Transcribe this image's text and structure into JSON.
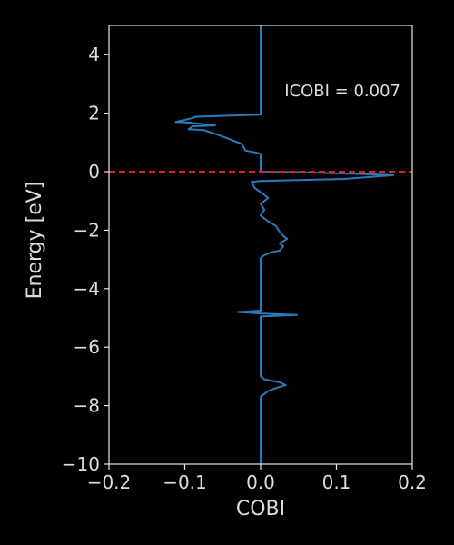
{
  "chart_data": {
    "type": "line",
    "title": "",
    "xlabel": "COBI",
    "ylabel": "Energy [eV]",
    "xlim": [
      -0.2,
      0.2
    ],
    "ylim": [
      -10,
      5
    ],
    "xticks": [
      -0.2,
      -0.1,
      0.0,
      0.1,
      0.2
    ],
    "xtick_labels": [
      "−0.2",
      "−0.1",
      "0.0",
      "0.1",
      "0.2"
    ],
    "yticks": [
      4,
      2,
      0,
      -2,
      -4,
      -6,
      -8,
      -10
    ],
    "ytick_labels": [
      "4",
      "2",
      "0",
      "−2",
      "−4",
      "−6",
      "−8",
      "−10"
    ],
    "annotation": "ICOBI = 0.007",
    "grid": false,
    "reference_line": {
      "y": 0,
      "style": "dashed",
      "color": "#e0201b"
    },
    "series": [
      {
        "color": "#2b7bba",
        "points": [
          [
            0.0,
            5.0
          ],
          [
            0.0,
            1.95
          ],
          [
            -0.085,
            1.88
          ],
          [
            -0.09,
            1.83
          ],
          [
            -0.112,
            1.7
          ],
          [
            -0.095,
            1.68
          ],
          [
            -0.06,
            1.58
          ],
          [
            -0.09,
            1.55
          ],
          [
            -0.095,
            1.45
          ],
          [
            -0.075,
            1.42
          ],
          [
            -0.058,
            1.28
          ],
          [
            -0.04,
            1.1
          ],
          [
            -0.025,
            0.95
          ],
          [
            -0.02,
            0.72
          ],
          [
            -0.005,
            0.65
          ],
          [
            0.0,
            0.6
          ],
          [
            0.0,
            0.0
          ],
          [
            0.05,
            -0.02
          ],
          [
            0.12,
            -0.07
          ],
          [
            0.175,
            -0.12
          ],
          [
            0.11,
            -0.25
          ],
          [
            0.0,
            -0.32
          ],
          [
            -0.012,
            -0.35
          ],
          [
            -0.008,
            -0.55
          ],
          [
            0.0,
            -0.7
          ],
          [
            0.01,
            -0.9
          ],
          [
            0.0,
            -1.1
          ],
          [
            0.005,
            -1.3
          ],
          [
            0.0,
            -1.5
          ],
          [
            0.01,
            -1.7
          ],
          [
            0.02,
            -1.85
          ],
          [
            0.025,
            -2.05
          ],
          [
            0.03,
            -2.2
          ],
          [
            0.035,
            -2.3
          ],
          [
            0.025,
            -2.45
          ],
          [
            0.03,
            -2.55
          ],
          [
            0.025,
            -2.7
          ],
          [
            0.015,
            -2.75
          ],
          [
            0.005,
            -2.85
          ],
          [
            0.0,
            -2.95
          ],
          [
            0.0,
            -4.75
          ],
          [
            -0.03,
            -4.8
          ],
          [
            0.0,
            -4.85
          ],
          [
            0.048,
            -4.9
          ],
          [
            0.0,
            -4.95
          ],
          [
            0.0,
            -7.0
          ],
          [
            0.005,
            -7.1
          ],
          [
            0.025,
            -7.2
          ],
          [
            0.033,
            -7.3
          ],
          [
            0.02,
            -7.4
          ],
          [
            0.01,
            -7.5
          ],
          [
            0.005,
            -7.6
          ],
          [
            0.0,
            -7.7
          ],
          [
            0.0,
            -10.0
          ]
        ]
      }
    ]
  },
  "colors": {
    "background": "#000000",
    "axes": "#e6e6e6",
    "text": "#dcdcdc",
    "series_line": "#2b7bba",
    "fermi_line": "#e0201b"
  }
}
